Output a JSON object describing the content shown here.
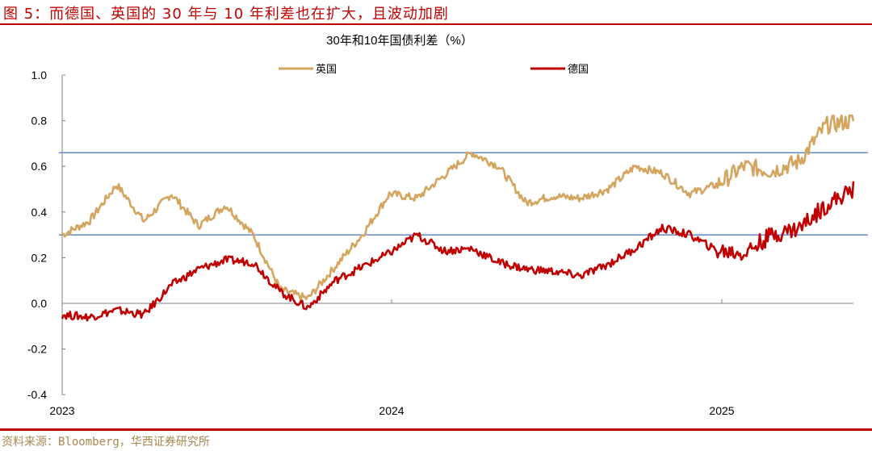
{
  "figure": {
    "title": "图 5：而德国、英国的 30 年与 10 年利差也在扩大，且波动加剧",
    "source": "资料来源：Bloomberg，华西证券研究所"
  },
  "chart_data": {
    "type": "line",
    "title": "30年和10年国债利差（%）",
    "xlabel": "",
    "ylabel": "",
    "ylim": [
      -0.4,
      1.0
    ],
    "yticks": [
      "1.0",
      "0.8",
      "0.6",
      "0.4",
      "0.2",
      "0.0",
      "-0.2",
      "-0.4"
    ],
    "xticks": [
      "2023",
      "2024",
      "2025"
    ],
    "grid": false,
    "legend_position": "top",
    "reference_lines": [
      0.66,
      0.3
    ],
    "reference_line_color": "#4472c4",
    "x": [
      "2023-01",
      "2023-02",
      "2023-03",
      "2023-04",
      "2023-05",
      "2023-06",
      "2023-07",
      "2023-08",
      "2023-09",
      "2023-10",
      "2023-11",
      "2023-12",
      "2024-01",
      "2024-02",
      "2024-03",
      "2024-04",
      "2024-05",
      "2024-06",
      "2024-07",
      "2024-08",
      "2024-09",
      "2024-10",
      "2024-11",
      "2024-12",
      "2025-01",
      "2025-02",
      "2025-03",
      "2025-04",
      "2025-05",
      "2025-06"
    ],
    "series": [
      {
        "name": "英国",
        "color": "#d4a55e",
        "values": [
          0.3,
          0.36,
          0.52,
          0.36,
          0.48,
          0.34,
          0.43,
          0.3,
          0.06,
          0.02,
          0.16,
          0.3,
          0.48,
          0.46,
          0.56,
          0.66,
          0.6,
          0.44,
          0.47,
          0.46,
          0.5,
          0.6,
          0.57,
          0.48,
          0.52,
          0.6,
          0.58,
          0.62,
          0.78,
          0.8
        ]
      },
      {
        "name": "德国",
        "color": "#c00000",
        "values": [
          -0.05,
          -0.06,
          -0.03,
          -0.05,
          0.08,
          0.15,
          0.19,
          0.18,
          0.05,
          -0.02,
          0.1,
          0.16,
          0.22,
          0.3,
          0.23,
          0.24,
          0.18,
          0.15,
          0.14,
          0.12,
          0.17,
          0.24,
          0.33,
          0.3,
          0.23,
          0.22,
          0.3,
          0.33,
          0.43,
          0.5
        ]
      }
    ]
  },
  "legend": {
    "uk": "英国",
    "de": "德国"
  }
}
